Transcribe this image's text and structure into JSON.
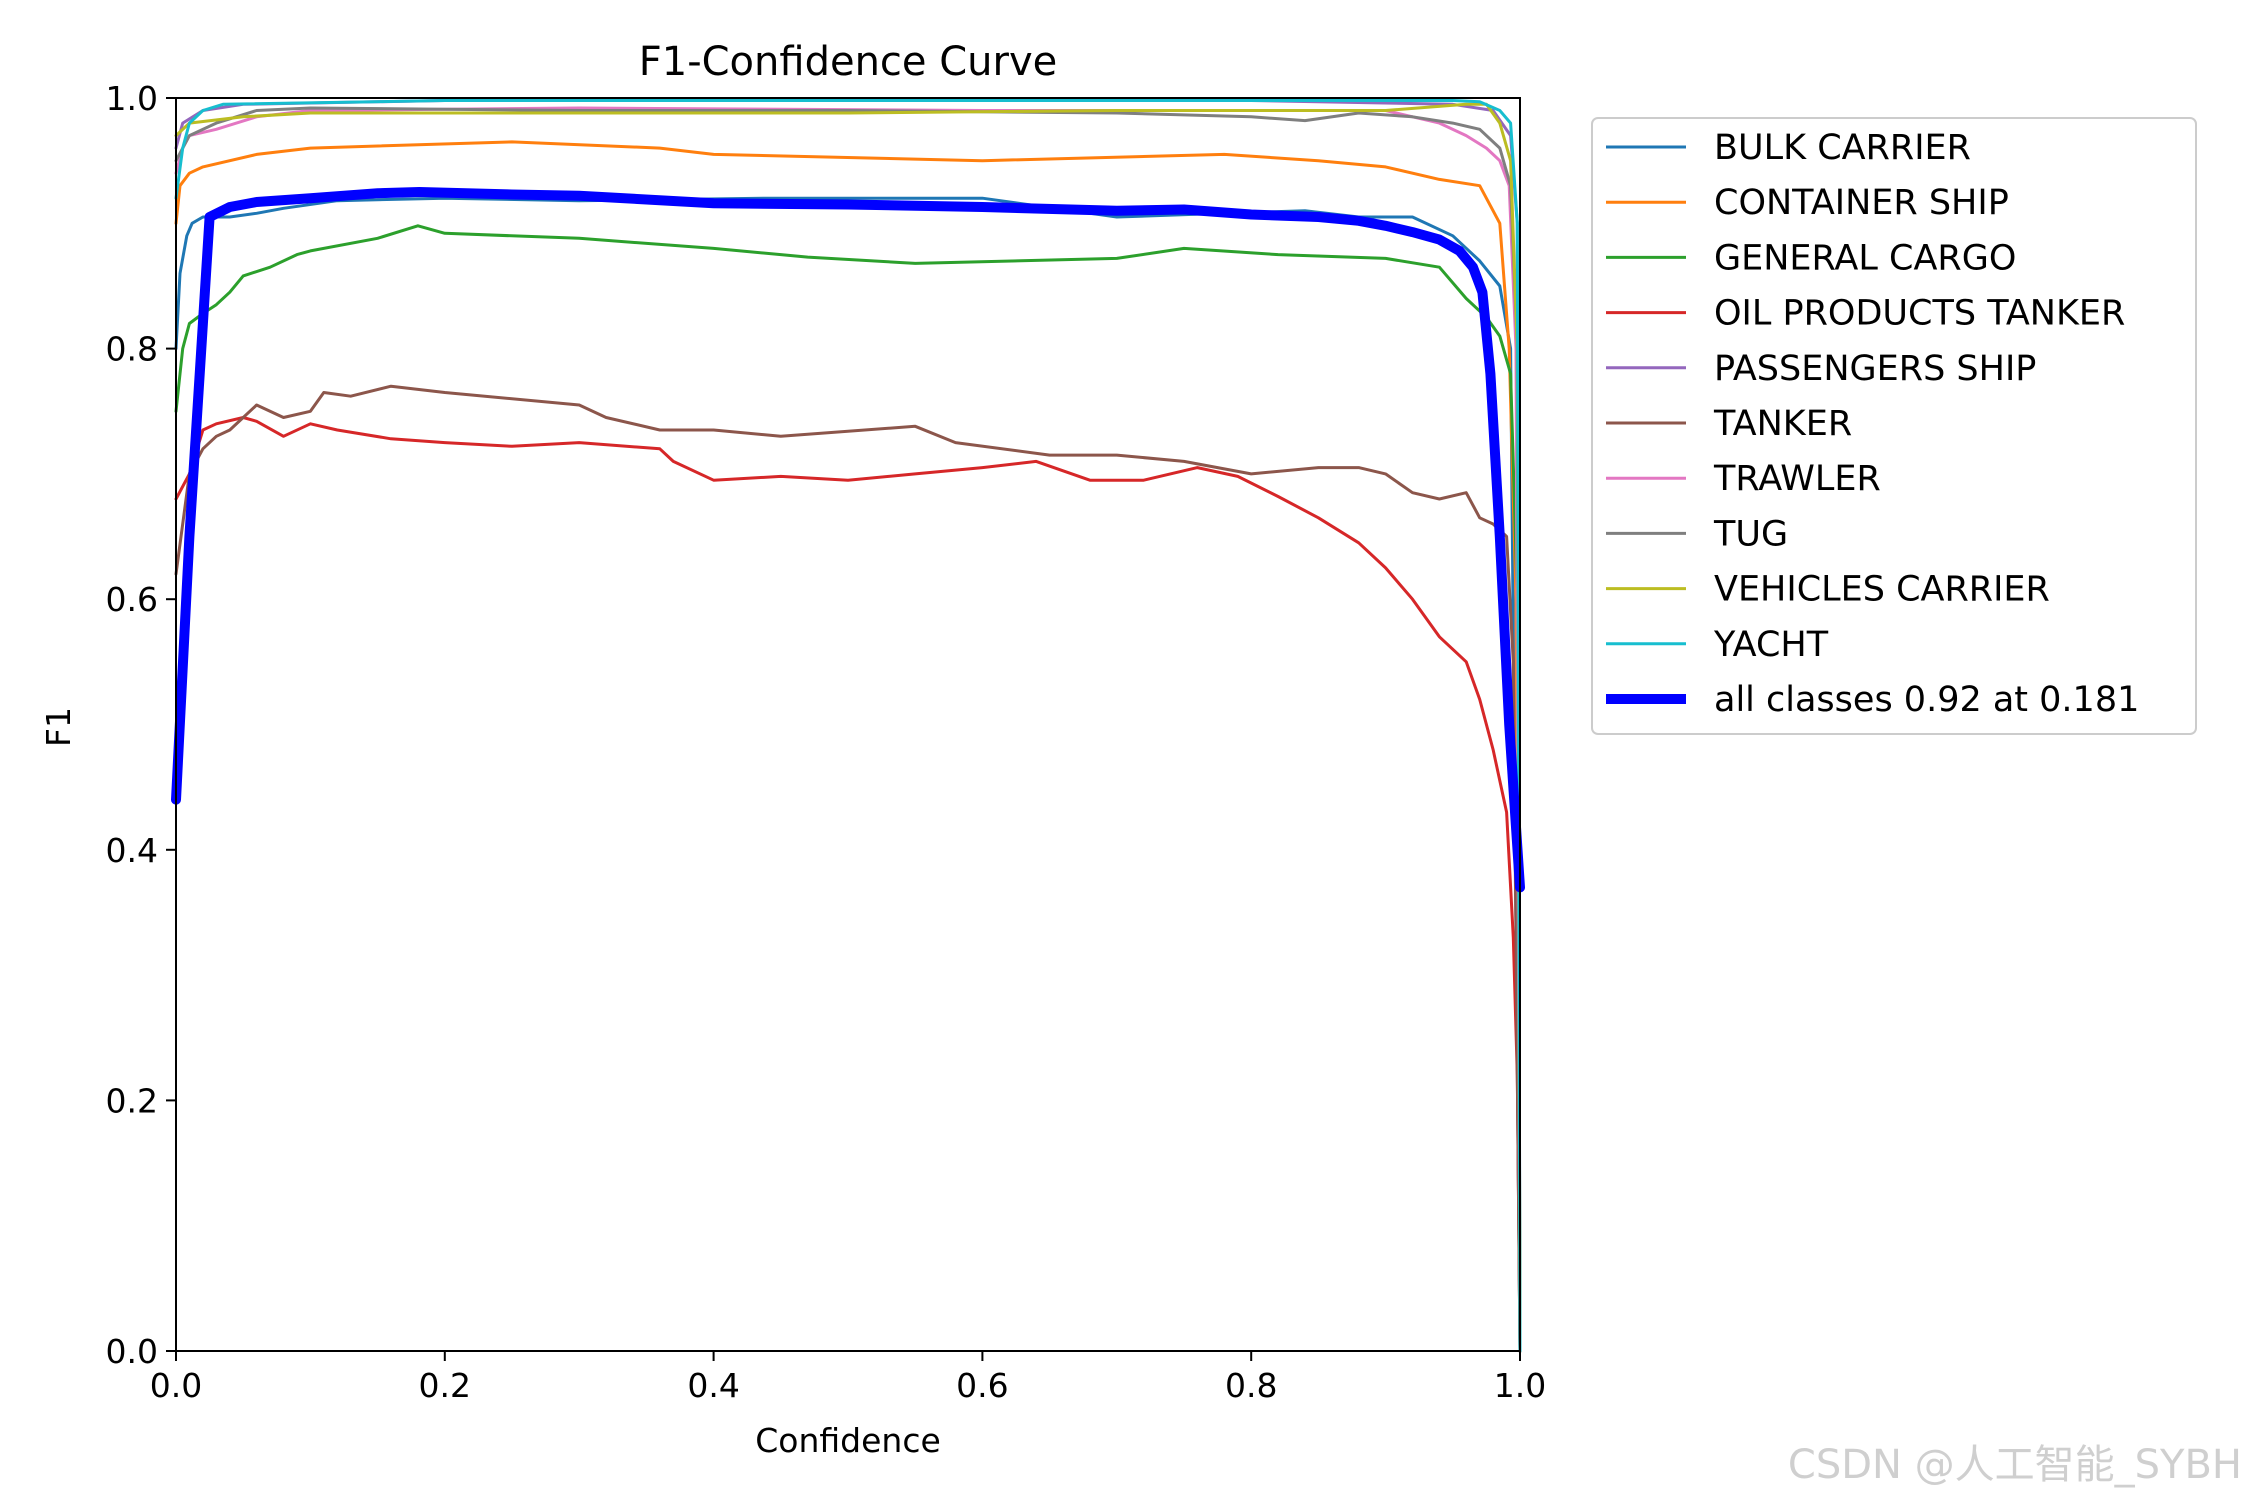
{
  "watermark": "CSDN @人工智能_SYBH",
  "chart_data": {
    "type": "line",
    "title": "F1-Confidence Curve",
    "xlabel": "Confidence",
    "ylabel": "F1",
    "xlim": [
      0,
      1
    ],
    "ylim": [
      0,
      1
    ],
    "xticks": [
      {
        "value": 0.0,
        "label": "0.0"
      },
      {
        "value": 0.2,
        "label": "0.2"
      },
      {
        "value": 0.4,
        "label": "0.4"
      },
      {
        "value": 0.6,
        "label": "0.6"
      },
      {
        "value": 0.8,
        "label": "0.8"
      },
      {
        "value": 1.0,
        "label": "1.0"
      }
    ],
    "yticks": [
      {
        "value": 0.0,
        "label": "0.0"
      },
      {
        "value": 0.2,
        "label": "0.2"
      },
      {
        "value": 0.4,
        "label": "0.4"
      },
      {
        "value": 0.6,
        "label": "0.6"
      },
      {
        "value": 0.8,
        "label": "0.8"
      },
      {
        "value": 1.0,
        "label": "1.0"
      }
    ],
    "grid": false,
    "legend_position": "outside-right-top",
    "series": [
      {
        "name": "BULK CARRIER",
        "color": "#1f77b4",
        "width": 1.5,
        "points": [
          [
            0,
            0.8
          ],
          [
            0.003,
            0.86
          ],
          [
            0.008,
            0.89
          ],
          [
            0.012,
            0.9
          ],
          [
            0.02,
            0.905
          ],
          [
            0.04,
            0.905
          ],
          [
            0.06,
            0.908
          ],
          [
            0.08,
            0.912
          ],
          [
            0.12,
            0.918
          ],
          [
            0.2,
            0.92
          ],
          [
            0.3,
            0.918
          ],
          [
            0.44,
            0.92
          ],
          [
            0.6,
            0.92
          ],
          [
            0.7,
            0.905
          ],
          [
            0.78,
            0.908
          ],
          [
            0.84,
            0.91
          ],
          [
            0.88,
            0.905
          ],
          [
            0.92,
            0.905
          ],
          [
            0.95,
            0.89
          ],
          [
            0.97,
            0.87
          ],
          [
            0.985,
            0.85
          ],
          [
            0.993,
            0.8
          ],
          [
            1.0,
            0.0
          ]
        ]
      },
      {
        "name": "CONTAINER SHIP",
        "color": "#ff7f0e",
        "width": 1.5,
        "points": [
          [
            0,
            0.9
          ],
          [
            0.003,
            0.93
          ],
          [
            0.01,
            0.94
          ],
          [
            0.02,
            0.945
          ],
          [
            0.06,
            0.955
          ],
          [
            0.1,
            0.96
          ],
          [
            0.25,
            0.965
          ],
          [
            0.36,
            0.96
          ],
          [
            0.4,
            0.955
          ],
          [
            0.6,
            0.95
          ],
          [
            0.78,
            0.955
          ],
          [
            0.85,
            0.95
          ],
          [
            0.9,
            0.945
          ],
          [
            0.94,
            0.935
          ],
          [
            0.97,
            0.93
          ],
          [
            0.985,
            0.9
          ],
          [
            0.992,
            0.8
          ],
          [
            0.997,
            0.6
          ],
          [
            1.0,
            0.0
          ]
        ]
      },
      {
        "name": "GENERAL CARGO",
        "color": "#2ca02c",
        "width": 1.5,
        "points": [
          [
            0,
            0.75
          ],
          [
            0.005,
            0.8
          ],
          [
            0.01,
            0.82
          ],
          [
            0.02,
            0.828
          ],
          [
            0.03,
            0.835
          ],
          [
            0.04,
            0.845
          ],
          [
            0.05,
            0.858
          ],
          [
            0.07,
            0.865
          ],
          [
            0.09,
            0.875
          ],
          [
            0.1,
            0.878
          ],
          [
            0.15,
            0.888
          ],
          [
            0.18,
            0.898
          ],
          [
            0.2,
            0.892
          ],
          [
            0.3,
            0.888
          ],
          [
            0.4,
            0.88
          ],
          [
            0.47,
            0.873
          ],
          [
            0.55,
            0.868
          ],
          [
            0.7,
            0.872
          ],
          [
            0.75,
            0.88
          ],
          [
            0.82,
            0.875
          ],
          [
            0.9,
            0.872
          ],
          [
            0.94,
            0.865
          ],
          [
            0.96,
            0.84
          ],
          [
            0.975,
            0.825
          ],
          [
            0.985,
            0.81
          ],
          [
            0.993,
            0.78
          ],
          [
            0.998,
            0.6
          ],
          [
            1.0,
            0.0
          ]
        ]
      },
      {
        "name": "OIL PRODUCTS TANKER",
        "color": "#d62728",
        "width": 1.5,
        "points": [
          [
            0,
            0.68
          ],
          [
            0.01,
            0.7
          ],
          [
            0.02,
            0.735
          ],
          [
            0.03,
            0.74
          ],
          [
            0.05,
            0.745
          ],
          [
            0.06,
            0.742
          ],
          [
            0.08,
            0.73
          ],
          [
            0.1,
            0.74
          ],
          [
            0.12,
            0.735
          ],
          [
            0.16,
            0.728
          ],
          [
            0.2,
            0.725
          ],
          [
            0.25,
            0.722
          ],
          [
            0.3,
            0.725
          ],
          [
            0.36,
            0.72
          ],
          [
            0.37,
            0.71
          ],
          [
            0.4,
            0.695
          ],
          [
            0.45,
            0.698
          ],
          [
            0.5,
            0.695
          ],
          [
            0.55,
            0.7
          ],
          [
            0.6,
            0.705
          ],
          [
            0.64,
            0.71
          ],
          [
            0.68,
            0.695
          ],
          [
            0.72,
            0.695
          ],
          [
            0.76,
            0.705
          ],
          [
            0.79,
            0.698
          ],
          [
            0.82,
            0.682
          ],
          [
            0.85,
            0.665
          ],
          [
            0.88,
            0.645
          ],
          [
            0.9,
            0.625
          ],
          [
            0.92,
            0.6
          ],
          [
            0.94,
            0.57
          ],
          [
            0.96,
            0.55
          ],
          [
            0.97,
            0.52
          ],
          [
            0.98,
            0.48
          ],
          [
            0.99,
            0.43
          ],
          [
            0.995,
            0.33
          ],
          [
            0.998,
            0.22
          ],
          [
            1.0,
            0.0
          ]
        ]
      },
      {
        "name": "PASSENGERS SHIP",
        "color": "#9467bd",
        "width": 1.5,
        "points": [
          [
            0,
            0.96
          ],
          [
            0.005,
            0.98
          ],
          [
            0.02,
            0.99
          ],
          [
            0.05,
            0.995
          ],
          [
            0.2,
            0.998
          ],
          [
            0.5,
            0.998
          ],
          [
            0.8,
            0.998
          ],
          [
            0.95,
            0.995
          ],
          [
            0.98,
            0.99
          ],
          [
            0.993,
            0.97
          ],
          [
            0.998,
            0.9
          ],
          [
            1.0,
            0.0
          ]
        ]
      },
      {
        "name": "TANKER",
        "color": "#8c564b",
        "width": 1.5,
        "points": [
          [
            0,
            0.62
          ],
          [
            0.01,
            0.7
          ],
          [
            0.02,
            0.72
          ],
          [
            0.03,
            0.73
          ],
          [
            0.04,
            0.735
          ],
          [
            0.06,
            0.755
          ],
          [
            0.08,
            0.745
          ],
          [
            0.1,
            0.75
          ],
          [
            0.11,
            0.765
          ],
          [
            0.13,
            0.762
          ],
          [
            0.16,
            0.77
          ],
          [
            0.2,
            0.765
          ],
          [
            0.3,
            0.755
          ],
          [
            0.32,
            0.745
          ],
          [
            0.36,
            0.735
          ],
          [
            0.4,
            0.735
          ],
          [
            0.45,
            0.73
          ],
          [
            0.55,
            0.738
          ],
          [
            0.58,
            0.725
          ],
          [
            0.65,
            0.715
          ],
          [
            0.7,
            0.715
          ],
          [
            0.75,
            0.71
          ],
          [
            0.8,
            0.7
          ],
          [
            0.85,
            0.705
          ],
          [
            0.88,
            0.705
          ],
          [
            0.9,
            0.7
          ],
          [
            0.92,
            0.685
          ],
          [
            0.94,
            0.68
          ],
          [
            0.96,
            0.685
          ],
          [
            0.97,
            0.665
          ],
          [
            0.98,
            0.66
          ],
          [
            0.99,
            0.65
          ],
          [
            0.995,
            0.55
          ],
          [
            1.0,
            0.0
          ]
        ]
      },
      {
        "name": "TRAWLER",
        "color": "#e377c2",
        "width": 1.5,
        "points": [
          [
            0,
            0.94
          ],
          [
            0.005,
            0.96
          ],
          [
            0.01,
            0.97
          ],
          [
            0.03,
            0.975
          ],
          [
            0.06,
            0.985
          ],
          [
            0.1,
            0.99
          ],
          [
            0.3,
            0.992
          ],
          [
            0.6,
            0.99
          ],
          [
            0.8,
            0.99
          ],
          [
            0.9,
            0.99
          ],
          [
            0.94,
            0.98
          ],
          [
            0.96,
            0.97
          ],
          [
            0.975,
            0.96
          ],
          [
            0.985,
            0.95
          ],
          [
            0.992,
            0.93
          ],
          [
            0.997,
            0.8
          ],
          [
            1.0,
            0.0
          ]
        ]
      },
      {
        "name": "TUG",
        "color": "#7f7f7f",
        "width": 1.5,
        "points": [
          [
            0,
            0.95
          ],
          [
            0.01,
            0.97
          ],
          [
            0.03,
            0.98
          ],
          [
            0.06,
            0.99
          ],
          [
            0.1,
            0.992
          ],
          [
            0.3,
            0.99
          ],
          [
            0.5,
            0.99
          ],
          [
            0.7,
            0.988
          ],
          [
            0.8,
            0.985
          ],
          [
            0.84,
            0.982
          ],
          [
            0.88,
            0.988
          ],
          [
            0.92,
            0.985
          ],
          [
            0.95,
            0.98
          ],
          [
            0.97,
            0.975
          ],
          [
            0.985,
            0.96
          ],
          [
            0.993,
            0.93
          ],
          [
            0.998,
            0.8
          ],
          [
            1.0,
            0.0
          ]
        ]
      },
      {
        "name": "VEHICLES CARRIER",
        "color": "#bcbd22",
        "width": 1.5,
        "points": [
          [
            0,
            0.97
          ],
          [
            0.01,
            0.98
          ],
          [
            0.05,
            0.985
          ],
          [
            0.1,
            0.988
          ],
          [
            0.3,
            0.988
          ],
          [
            0.5,
            0.988
          ],
          [
            0.7,
            0.99
          ],
          [
            0.9,
            0.99
          ],
          [
            0.96,
            0.995
          ],
          [
            0.975,
            0.995
          ],
          [
            0.985,
            0.98
          ],
          [
            0.993,
            0.95
          ],
          [
            0.998,
            0.8
          ],
          [
            1.0,
            0.0
          ]
        ]
      },
      {
        "name": "YACHT",
        "color": "#17becf",
        "width": 1.5,
        "points": [
          [
            0,
            0.92
          ],
          [
            0.005,
            0.96
          ],
          [
            0.01,
            0.98
          ],
          [
            0.02,
            0.99
          ],
          [
            0.035,
            0.995
          ],
          [
            0.2,
            0.998
          ],
          [
            0.5,
            0.998
          ],
          [
            0.8,
            0.998
          ],
          [
            0.95,
            0.998
          ],
          [
            0.97,
            0.997
          ],
          [
            0.985,
            0.99
          ],
          [
            0.993,
            0.98
          ],
          [
            0.998,
            0.9
          ],
          [
            1.0,
            0.0
          ]
        ]
      },
      {
        "name": "all classes 0.92 at 0.181",
        "color": "#0000ff",
        "width": 5,
        "points": [
          [
            0,
            0.44
          ],
          [
            0.01,
            0.65
          ],
          [
            0.02,
            0.82
          ],
          [
            0.025,
            0.905
          ],
          [
            0.04,
            0.913
          ],
          [
            0.06,
            0.917
          ],
          [
            0.1,
            0.92
          ],
          [
            0.15,
            0.924
          ],
          [
            0.181,
            0.925
          ],
          [
            0.25,
            0.923
          ],
          [
            0.3,
            0.922
          ],
          [
            0.4,
            0.916
          ],
          [
            0.5,
            0.915
          ],
          [
            0.6,
            0.913
          ],
          [
            0.7,
            0.91
          ],
          [
            0.75,
            0.911
          ],
          [
            0.8,
            0.907
          ],
          [
            0.85,
            0.905
          ],
          [
            0.88,
            0.902
          ],
          [
            0.9,
            0.898
          ],
          [
            0.92,
            0.893
          ],
          [
            0.94,
            0.887
          ],
          [
            0.955,
            0.878
          ],
          [
            0.965,
            0.865
          ],
          [
            0.972,
            0.845
          ],
          [
            0.978,
            0.78
          ],
          [
            0.985,
            0.65
          ],
          [
            0.992,
            0.5
          ],
          [
            1.0,
            0.37
          ]
        ]
      }
    ]
  }
}
